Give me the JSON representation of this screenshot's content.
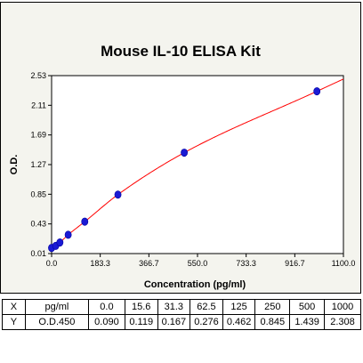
{
  "chart_data": {
    "type": "scatter",
    "title": "Mouse IL-10 ELISA Kit",
    "xlabel": "Concentration (pg/ml)",
    "ylabel": "O.D.",
    "xlim": [
      0,
      1100
    ],
    "ylim": [
      0.01,
      2.53
    ],
    "xticks": [
      "0.0",
      "183.3",
      "366.7",
      "550.0",
      "733.3",
      "916.7",
      "1100.0"
    ],
    "yticks": [
      "0.01",
      "0.43",
      "0.85",
      "1.27",
      "1.69",
      "2.11",
      "2.53"
    ],
    "points": {
      "x": [
        0,
        15.6,
        31.3,
        62.5,
        125,
        250,
        500,
        1000
      ],
      "y": [
        0.09,
        0.119,
        0.167,
        0.276,
        0.462,
        0.845,
        1.439,
        2.308
      ]
    },
    "curve_color": "#ff0000",
    "point_color": "#1a1ad4",
    "grid": false
  },
  "table": {
    "rows": [
      [
        "X",
        "pg/ml",
        "0.0",
        "15.6",
        "31.3",
        "62.5",
        "125",
        "250",
        "500",
        "1000"
      ],
      [
        "Y",
        "O.D.450",
        "0.090",
        "0.119",
        "0.167",
        "0.276",
        "0.462",
        "0.845",
        "1.439",
        "2.308"
      ]
    ]
  }
}
